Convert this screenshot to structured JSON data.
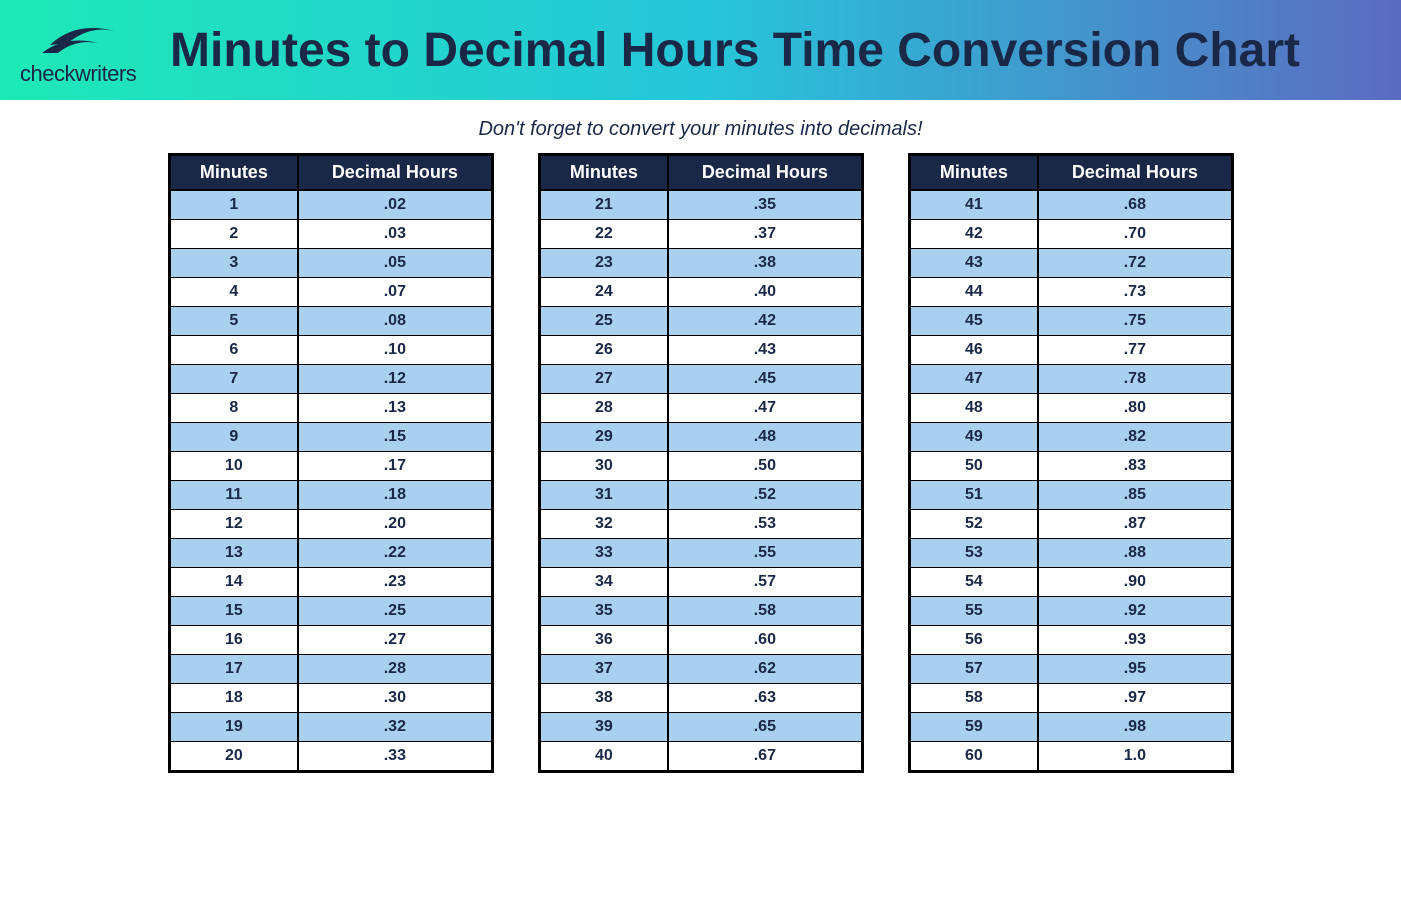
{
  "header": {
    "brand": "checkwriters",
    "title": "Minutes to Decimal Hours Time Conversion Chart",
    "gradient_start": "#1de9b6",
    "gradient_mid": "#26c6da",
    "gradient_end": "#5c6bc0",
    "title_color": "#1a2847",
    "title_fontsize": 48
  },
  "subtitle": "Don't forget to convert your minutes into decimals!",
  "subtitle_fontsize": 20,
  "subtitle_color": "#1a2847",
  "table_style": {
    "header_bg": "#1a2847",
    "header_fg": "#ffffff",
    "row_odd_bg": "#a9d0ef",
    "row_even_bg": "#ffffff",
    "border_color": "#000000",
    "cell_font_weight": 700,
    "cell_font_size": 16
  },
  "columns": [
    "Minutes",
    "Decimal Hours"
  ],
  "table1": {
    "rows": [
      [
        "1",
        ".02"
      ],
      [
        "2",
        ".03"
      ],
      [
        "3",
        ".05"
      ],
      [
        "4",
        ".07"
      ],
      [
        "5",
        ".08"
      ],
      [
        "6",
        ".10"
      ],
      [
        "7",
        ".12"
      ],
      [
        "8",
        ".13"
      ],
      [
        "9",
        ".15"
      ],
      [
        "10",
        ".17"
      ],
      [
        "11",
        ".18"
      ],
      [
        "12",
        ".20"
      ],
      [
        "13",
        ".22"
      ],
      [
        "14",
        ".23"
      ],
      [
        "15",
        ".25"
      ],
      [
        "16",
        ".27"
      ],
      [
        "17",
        ".28"
      ],
      [
        "18",
        ".30"
      ],
      [
        "19",
        ".32"
      ],
      [
        "20",
        ".33"
      ]
    ]
  },
  "table2": {
    "rows": [
      [
        "21",
        ".35"
      ],
      [
        "22",
        ".37"
      ],
      [
        "23",
        ".38"
      ],
      [
        "24",
        ".40"
      ],
      [
        "25",
        ".42"
      ],
      [
        "26",
        ".43"
      ],
      [
        "27",
        ".45"
      ],
      [
        "28",
        ".47"
      ],
      [
        "29",
        ".48"
      ],
      [
        "30",
        ".50"
      ],
      [
        "31",
        ".52"
      ],
      [
        "32",
        ".53"
      ],
      [
        "33",
        ".55"
      ],
      [
        "34",
        ".57"
      ],
      [
        "35",
        ".58"
      ],
      [
        "36",
        ".60"
      ],
      [
        "37",
        ".62"
      ],
      [
        "38",
        ".63"
      ],
      [
        "39",
        ".65"
      ],
      [
        "40",
        ".67"
      ]
    ]
  },
  "table3": {
    "rows": [
      [
        "41",
        ".68"
      ],
      [
        "42",
        ".70"
      ],
      [
        "43",
        ".72"
      ],
      [
        "44",
        ".73"
      ],
      [
        "45",
        ".75"
      ],
      [
        "46",
        ".77"
      ],
      [
        "47",
        ".78"
      ],
      [
        "48",
        ".80"
      ],
      [
        "49",
        ".82"
      ],
      [
        "50",
        ".83"
      ],
      [
        "51",
        ".85"
      ],
      [
        "52",
        ".87"
      ],
      [
        "53",
        ".88"
      ],
      [
        "54",
        ".90"
      ],
      [
        "55",
        ".92"
      ],
      [
        "56",
        ".93"
      ],
      [
        "57",
        ".95"
      ],
      [
        "58",
        ".97"
      ],
      [
        "59",
        ".98"
      ],
      [
        "60",
        "1.0"
      ]
    ]
  }
}
